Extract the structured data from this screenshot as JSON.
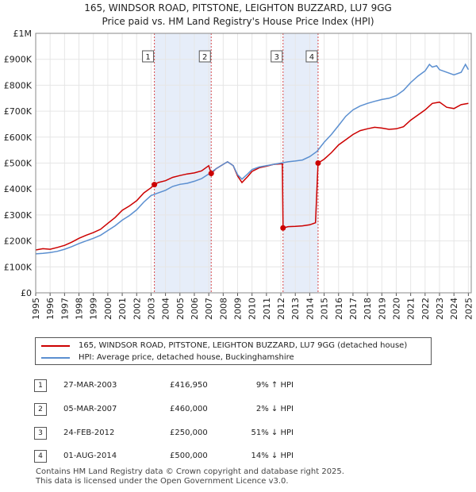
{
  "chart_data": {
    "type": "line",
    "title": "165, WINDSOR ROAD, PITSTONE, LEIGHTON BUZZARD, LU7 9GG",
    "subtitle": "Price paid vs. HM Land Registry's House Price Index (HPI)",
    "xlim": [
      1995.0,
      2025.2
    ],
    "ylim": [
      0,
      1000000
    ],
    "y_ticks": [
      {
        "value": 0,
        "label": "£0"
      },
      {
        "value": 100000,
        "label": "£100K"
      },
      {
        "value": 200000,
        "label": "£200K"
      },
      {
        "value": 300000,
        "label": "£300K"
      },
      {
        "value": 400000,
        "label": "£400K"
      },
      {
        "value": 500000,
        "label": "£500K"
      },
      {
        "value": 600000,
        "label": "£600K"
      },
      {
        "value": 700000,
        "label": "£700K"
      },
      {
        "value": 800000,
        "label": "£800K"
      },
      {
        "value": 900000,
        "label": "£900K"
      },
      {
        "value": 1000000,
        "label": "£1M"
      }
    ],
    "x_ticks": [
      "1995",
      "1996",
      "1997",
      "1998",
      "1999",
      "2000",
      "2001",
      "2002",
      "2003",
      "2004",
      "2005",
      "2006",
      "2007",
      "2008",
      "2009",
      "2010",
      "2011",
      "2012",
      "2013",
      "2014",
      "2015",
      "2016",
      "2017",
      "2018",
      "2019",
      "2020",
      "2021",
      "2022",
      "2023",
      "2024",
      "2025"
    ],
    "grid": true,
    "shaded_periods": [
      [
        2003.23,
        2007.17
      ],
      [
        2012.15,
        2014.58
      ]
    ],
    "series": [
      {
        "name": "165, WINDSOR ROAD, PITSTONE, LEIGHTON BUZZARD, LU7 9GG (detached house)",
        "color": "#cc0000",
        "points": [
          [
            1995.0,
            165000
          ],
          [
            1995.5,
            170000
          ],
          [
            1996.0,
            168000
          ],
          [
            1996.5,
            175000
          ],
          [
            1997.0,
            183000
          ],
          [
            1997.5,
            195000
          ],
          [
            1998.0,
            210000
          ],
          [
            1998.5,
            222000
          ],
          [
            1999.0,
            232000
          ],
          [
            1999.5,
            245000
          ],
          [
            2000.0,
            268000
          ],
          [
            2000.5,
            290000
          ],
          [
            2001.0,
            318000
          ],
          [
            2001.5,
            335000
          ],
          [
            2002.0,
            355000
          ],
          [
            2002.5,
            385000
          ],
          [
            2003.0,
            405000
          ],
          [
            2003.23,
            416950
          ],
          [
            2003.5,
            425000
          ],
          [
            2004.0,
            432000
          ],
          [
            2004.5,
            445000
          ],
          [
            2005.0,
            452000
          ],
          [
            2005.5,
            458000
          ],
          [
            2006.0,
            462000
          ],
          [
            2006.5,
            470000
          ],
          [
            2007.0,
            490000
          ],
          [
            2007.17,
            460000
          ],
          [
            2007.5,
            478000
          ],
          [
            2008.0,
            495000
          ],
          [
            2008.3,
            505000
          ],
          [
            2008.7,
            490000
          ],
          [
            2009.0,
            450000
          ],
          [
            2009.3,
            425000
          ],
          [
            2009.7,
            448000
          ],
          [
            2010.0,
            468000
          ],
          [
            2010.5,
            482000
          ],
          [
            2011.0,
            488000
          ],
          [
            2011.5,
            495000
          ],
          [
            2012.0,
            497000
          ],
          [
            2012.1,
            497000
          ],
          [
            2012.15,
            250000
          ],
          [
            2012.5,
            255000
          ],
          [
            2013.0,
            256000
          ],
          [
            2013.5,
            258000
          ],
          [
            2014.0,
            262000
          ],
          [
            2014.4,
            270000
          ],
          [
            2014.58,
            500000
          ],
          [
            2015.0,
            515000
          ],
          [
            2015.5,
            540000
          ],
          [
            2016.0,
            570000
          ],
          [
            2016.5,
            590000
          ],
          [
            2017.0,
            610000
          ],
          [
            2017.5,
            625000
          ],
          [
            2018.0,
            632000
          ],
          [
            2018.5,
            638000
          ],
          [
            2019.0,
            635000
          ],
          [
            2019.5,
            630000
          ],
          [
            2020.0,
            632000
          ],
          [
            2020.5,
            640000
          ],
          [
            2021.0,
            665000
          ],
          [
            2021.5,
            685000
          ],
          [
            2022.0,
            705000
          ],
          [
            2022.5,
            730000
          ],
          [
            2023.0,
            735000
          ],
          [
            2023.5,
            715000
          ],
          [
            2024.0,
            710000
          ],
          [
            2024.5,
            725000
          ],
          [
            2025.0,
            730000
          ]
        ]
      },
      {
        "name": "HPI: Average price, detached house, Buckinghamshire",
        "color": "#5b8fd0",
        "points": [
          [
            1995.0,
            150000
          ],
          [
            1995.5,
            152000
          ],
          [
            1996.0,
            155000
          ],
          [
            1996.5,
            160000
          ],
          [
            1997.0,
            168000
          ],
          [
            1997.5,
            178000
          ],
          [
            1998.0,
            190000
          ],
          [
            1998.5,
            200000
          ],
          [
            1999.0,
            210000
          ],
          [
            1999.5,
            222000
          ],
          [
            2000.0,
            240000
          ],
          [
            2000.5,
            258000
          ],
          [
            2001.0,
            280000
          ],
          [
            2001.5,
            298000
          ],
          [
            2002.0,
            320000
          ],
          [
            2002.5,
            350000
          ],
          [
            2003.0,
            375000
          ],
          [
            2003.5,
            385000
          ],
          [
            2004.0,
            395000
          ],
          [
            2004.5,
            410000
          ],
          [
            2005.0,
            418000
          ],
          [
            2005.5,
            422000
          ],
          [
            2006.0,
            430000
          ],
          [
            2006.5,
            440000
          ],
          [
            2007.0,
            458000
          ],
          [
            2007.5,
            478000
          ],
          [
            2008.0,
            495000
          ],
          [
            2008.3,
            505000
          ],
          [
            2008.7,
            490000
          ],
          [
            2009.0,
            455000
          ],
          [
            2009.3,
            438000
          ],
          [
            2009.7,
            458000
          ],
          [
            2010.0,
            475000
          ],
          [
            2010.5,
            485000
          ],
          [
            2011.0,
            490000
          ],
          [
            2011.5,
            495000
          ],
          [
            2012.0,
            500000
          ],
          [
            2012.5,
            505000
          ],
          [
            2013.0,
            508000
          ],
          [
            2013.5,
            512000
          ],
          [
            2014.0,
            525000
          ],
          [
            2014.5,
            545000
          ],
          [
            2015.0,
            580000
          ],
          [
            2015.5,
            610000
          ],
          [
            2016.0,
            645000
          ],
          [
            2016.5,
            680000
          ],
          [
            2017.0,
            705000
          ],
          [
            2017.5,
            720000
          ],
          [
            2018.0,
            730000
          ],
          [
            2018.5,
            738000
          ],
          [
            2019.0,
            745000
          ],
          [
            2019.5,
            750000
          ],
          [
            2020.0,
            760000
          ],
          [
            2020.5,
            780000
          ],
          [
            2021.0,
            810000
          ],
          [
            2021.5,
            835000
          ],
          [
            2022.0,
            855000
          ],
          [
            2022.3,
            880000
          ],
          [
            2022.5,
            870000
          ],
          [
            2022.8,
            875000
          ],
          [
            2023.0,
            860000
          ],
          [
            2023.5,
            850000
          ],
          [
            2024.0,
            840000
          ],
          [
            2024.5,
            850000
          ],
          [
            2024.8,
            880000
          ],
          [
            2025.0,
            860000
          ]
        ]
      }
    ],
    "transactions": [
      {
        "n": "1",
        "date": "27-MAR-2003",
        "year": 2003.23,
        "price_value": 416950,
        "price": "£416,950",
        "hpi": "9% ↑ HPI"
      },
      {
        "n": "2",
        "date": "05-MAR-2007",
        "year": 2007.17,
        "price_value": 460000,
        "price": "£460,000",
        "hpi": "2% ↓ HPI"
      },
      {
        "n": "3",
        "date": "24-FEB-2012",
        "year": 2012.15,
        "price_value": 250000,
        "price": "£250,000",
        "hpi": "51% ↓ HPI"
      },
      {
        "n": "4",
        "date": "01-AUG-2014",
        "year": 2014.58,
        "price_value": 500000,
        "price": "£500,000",
        "hpi": "14% ↓ HPI"
      }
    ]
  },
  "legend": {
    "property_label": "165, WINDSOR ROAD, PITSTONE, LEIGHTON BUZZARD, LU7 9GG (detached house)",
    "hpi_label": "HPI: Average price, detached house, Buckinghamshire"
  },
  "footer": {
    "line1": "Contains HM Land Registry data © Crown copyright and database right 2025.",
    "line2": "This data is licensed under the Open Government Licence v3.0."
  },
  "colors": {
    "property": "#cc0000",
    "hpi": "#5b8fd0",
    "shade": "#dce6f7",
    "grid": "#e6e6e6"
  }
}
